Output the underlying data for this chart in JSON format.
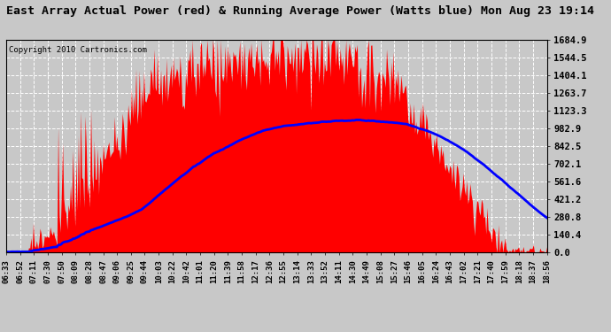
{
  "title": "East Array Actual Power (red) & Running Average Power (Watts blue) Mon Aug 23 19:14",
  "copyright": "Copyright 2010 Cartronics.com",
  "yticks": [
    0.0,
    140.4,
    280.8,
    421.2,
    561.6,
    702.1,
    842.5,
    982.9,
    1123.3,
    1263.7,
    1404.1,
    1544.5,
    1684.9
  ],
  "ymax": 1684.9,
  "background_color": "#c8c8c8",
  "plot_bg_color": "#c8c8c8",
  "grid_color": "#ffffff",
  "xtick_labels": [
    "06:33",
    "06:52",
    "07:11",
    "07:30",
    "07:50",
    "08:09",
    "08:28",
    "08:47",
    "09:06",
    "09:25",
    "09:44",
    "10:03",
    "10:22",
    "10:42",
    "11:01",
    "11:20",
    "11:39",
    "11:58",
    "12:17",
    "12:36",
    "12:55",
    "13:14",
    "13:33",
    "13:52",
    "14:11",
    "14:30",
    "14:49",
    "15:08",
    "15:27",
    "15:46",
    "16:05",
    "16:24",
    "16:43",
    "17:02",
    "17:21",
    "17:40",
    "17:59",
    "18:18",
    "18:37",
    "18:56"
  ],
  "red_color": "#ff0000",
  "blue_color": "#0000ff",
  "title_fontsize": 9.5,
  "copyright_fontsize": 6.5,
  "ytick_fontsize": 7.5,
  "xtick_fontsize": 6.5
}
